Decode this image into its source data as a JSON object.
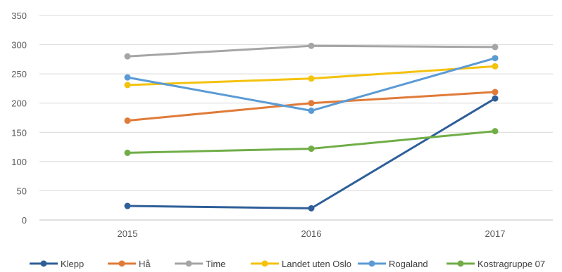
{
  "chart_data": {
    "type": "line",
    "categories": [
      "2015",
      "2016",
      "2017"
    ],
    "y_ticks": [
      "0",
      "50",
      "100",
      "150",
      "200",
      "250",
      "300",
      "350"
    ],
    "ylim": [
      0,
      350
    ],
    "grid": "horizontal",
    "legend_position": "bottom",
    "series": [
      {
        "name": "Klepp",
        "values": [
          24,
          20,
          208
        ],
        "color": "#2e5f98"
      },
      {
        "name": "Hå",
        "values": [
          170,
          200,
          219
        ],
        "color": "#e07b39"
      },
      {
        "name": "Time",
        "values": [
          280,
          298,
          296
        ],
        "color": "#a5a5a5"
      },
      {
        "name": "Landet uten Oslo",
        "values": [
          231,
          242,
          263
        ],
        "color": "#f4c20d"
      },
      {
        "name": "Rogaland",
        "values": [
          244,
          187,
          277
        ],
        "color": "#5b9bd5"
      },
      {
        "name": "Kostragruppe 07",
        "values": [
          115,
          122,
          152
        ],
        "color": "#70ad47"
      }
    ]
  }
}
